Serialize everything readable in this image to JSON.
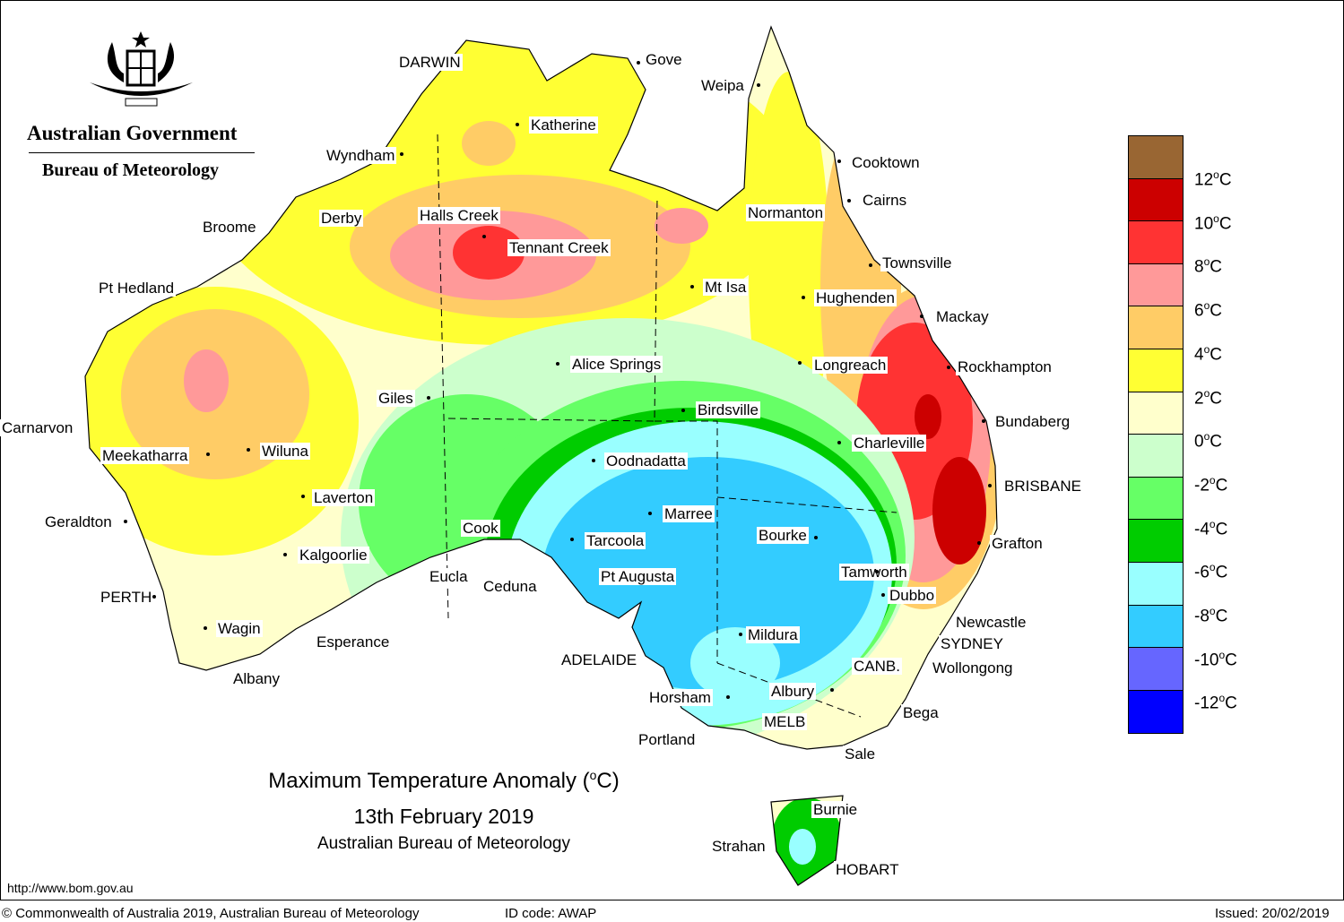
{
  "header": {
    "logo_text": "Australian Government",
    "logo_subtext": "Bureau of Meteorology"
  },
  "map_title": {
    "line1": "Maximum Temperature Anomaly (",
    "unit_sup": "o",
    "unit_tail": "C)",
    "date": "13th February 2019",
    "source": "Australian Bureau of Meteorology"
  },
  "legend": {
    "colors": [
      "#996633",
      "#cc0000",
      "#ff3333",
      "#ff9999",
      "#ffcc66",
      "#ffff33",
      "#ffffcc",
      "#ccffcc",
      "#66ff66",
      "#00cc00",
      "#99ffff",
      "#33ccff",
      "#6666ff",
      "#0000ff"
    ],
    "labels": [
      "12",
      "10",
      "8",
      "6",
      "4",
      "2",
      "0",
      "-2",
      "-4",
      "-6",
      "-8",
      "-10",
      "-12"
    ],
    "unit_sup": "o",
    "unit": "C"
  },
  "cities": [
    "DARWIN",
    "Gove",
    "Weipa",
    "Katherine",
    "Wyndham",
    "Cooktown",
    "Cairns",
    "Broome",
    "Derby",
    "Halls Creek",
    "Normanton",
    "Tennant Creek",
    "Townsville",
    "Pt Hedland",
    "Mt Isa",
    "Hughenden",
    "Mackay",
    "Longreach",
    "Rockhampton",
    "Alice Springs",
    "Giles",
    "Birdsville",
    "Bundaberg",
    "Carnarvon",
    "Charleville",
    "Meekatharra",
    "Wiluna",
    "Oodnadatta",
    "BRISBANE",
    "Laverton",
    "Marree",
    "Geraldton",
    "Cook",
    "Tarcoola",
    "Bourke",
    "Grafton",
    "Kalgoorlie",
    "Tamworth",
    "Pt Augusta",
    "Eucla",
    "Ceduna",
    "PERTH",
    "Dubbo",
    "Newcastle",
    "Wagin",
    "Mildura",
    "Esperance",
    "SYDNEY",
    "ADELAIDE",
    "CANB.",
    "Wollongong",
    "Albany",
    "Horsham",
    "Albury",
    "Bega",
    "MELB",
    "Portland",
    "Sale",
    "Burnie",
    "Strahan",
    "HOBART"
  ],
  "footer": {
    "url": "http://www.bom.gov.au",
    "copyright": "© Commonwealth of Australia 2019, Australian Bureau of Meteorology",
    "id_code": "ID code: AWAP",
    "issued": "Issued: 20/02/2019"
  }
}
